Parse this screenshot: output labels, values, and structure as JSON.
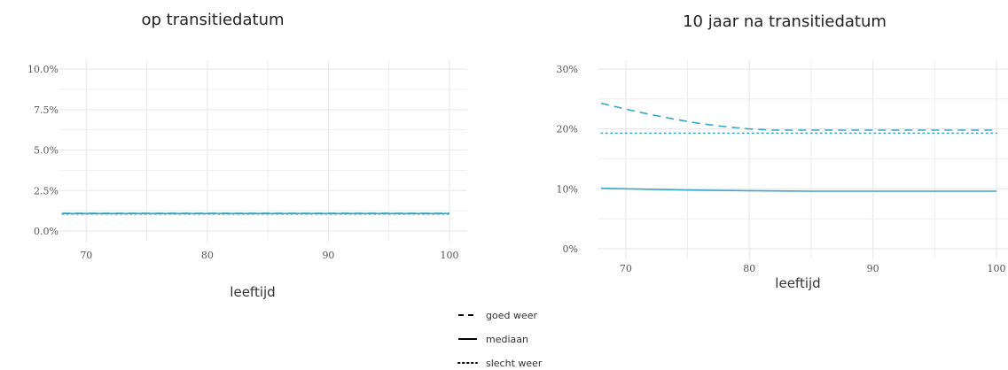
{
  "chart_data": [
    {
      "type": "line",
      "title": "op transitiedatum",
      "xlabel": "leeftijd",
      "ylabel": "",
      "xlim": [
        68,
        100
      ],
      "ylim": [
        0,
        0.1
      ],
      "x_ticks": [
        70,
        80,
        90,
        100
      ],
      "x_tick_labels": [
        "70",
        "80",
        "90",
        "100"
      ],
      "y_ticks": [
        0,
        0.025,
        0.05,
        0.075,
        0.1
      ],
      "y_tick_labels": [
        "0.0%",
        "2.5%",
        "5.0%",
        "7.5%",
        "10.0%"
      ],
      "grid": true,
      "series": [
        {
          "name": "goed weer",
          "style": "dashed",
          "x": [
            68,
            100
          ],
          "y": [
            0.011,
            0.011
          ]
        },
        {
          "name": "mediaan",
          "style": "solid",
          "x": [
            68,
            100
          ],
          "y": [
            0.0108,
            0.0108
          ]
        },
        {
          "name": "slecht weer",
          "style": "dotted",
          "x": [
            68,
            100
          ],
          "y": [
            0.0105,
            0.0105
          ]
        }
      ]
    },
    {
      "type": "line",
      "title": "10 jaar na transitiedatum",
      "xlabel": "leeftijd",
      "ylabel": "",
      "xlim": [
        68,
        100
      ],
      "ylim": [
        0,
        0.3
      ],
      "x_ticks": [
        70,
        80,
        90,
        100
      ],
      "x_tick_labels": [
        "70",
        "80",
        "90",
        "100"
      ],
      "y_ticks": [
        0,
        0.1,
        0.2,
        0.3
      ],
      "y_tick_labels": [
        "0%",
        "10%",
        "20%",
        "30%"
      ],
      "grid": true,
      "series": [
        {
          "name": "goed weer",
          "style": "dashed",
          "x": [
            68,
            70,
            72,
            74,
            76,
            78,
            80,
            82,
            84,
            86,
            88,
            90,
            92,
            94,
            96,
            98,
            100
          ],
          "y": [
            0.243,
            0.233,
            0.224,
            0.216,
            0.209,
            0.204,
            0.2,
            0.198,
            0.198,
            0.198,
            0.198,
            0.198,
            0.198,
            0.198,
            0.198,
            0.198,
            0.198
          ]
        },
        {
          "name": "mediaan",
          "style": "solid",
          "x": [
            68,
            70,
            75,
            80,
            85,
            90,
            95,
            100
          ],
          "y": [
            0.101,
            0.1,
            0.098,
            0.097,
            0.096,
            0.096,
            0.096,
            0.096
          ]
        },
        {
          "name": "slecht weer",
          "style": "dotted",
          "x": [
            68,
            100
          ],
          "y": [
            0.193,
            0.193
          ]
        }
      ]
    }
  ],
  "legend": {
    "placement": "bottom",
    "items": [
      {
        "label": "goed weer",
        "style": "dashed"
      },
      {
        "label": "mediaan",
        "style": "solid"
      },
      {
        "label": "slecht weer",
        "style": "dotted"
      }
    ]
  },
  "colors": {
    "series": "#3aa6c8",
    "grid": "#ebebeb",
    "legend_key": "#000000"
  }
}
